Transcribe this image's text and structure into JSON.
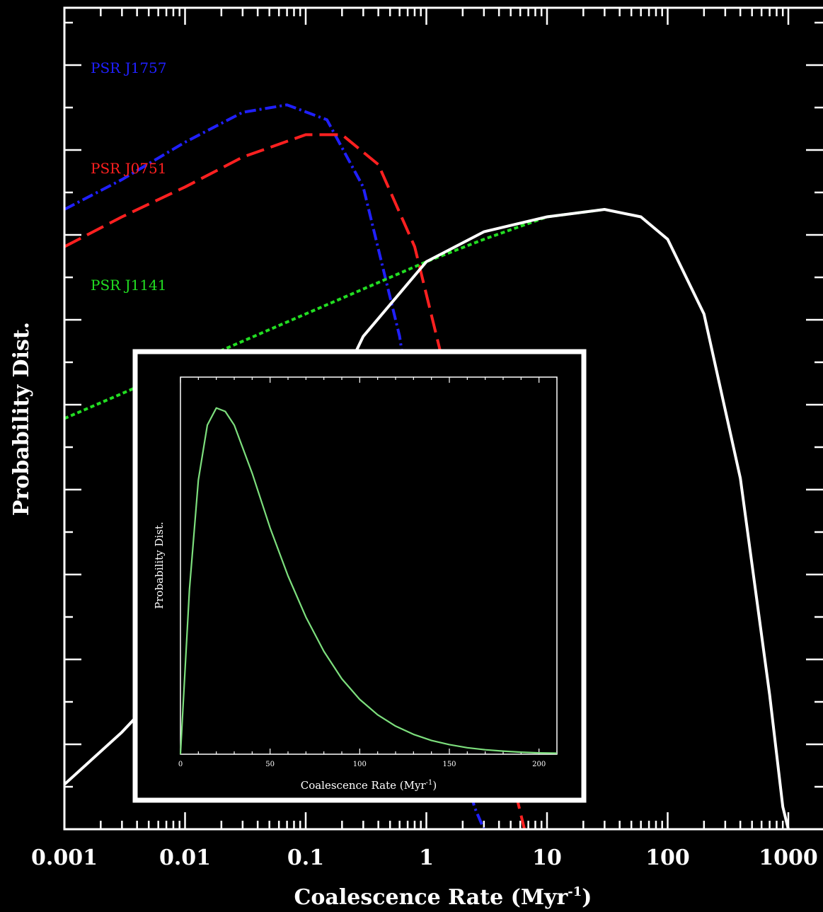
{
  "chart_data": [
    {
      "type": "line",
      "xscale": "log",
      "xlim": [
        0.001,
        1000
      ],
      "xlabel": "Coalescence Rate (Myr",
      "xlabel_sup": "-1",
      "xlabel_suffix": ")",
      "ylabel": "Probability Dist.",
      "xticks": [
        0.001,
        0.01,
        0.1,
        1,
        10,
        100,
        1000
      ],
      "xtick_labels": [
        "0.001",
        "0.01",
        "0.1",
        "1",
        "10",
        "100",
        "1000"
      ],
      "ylim": [
        0,
        1.1
      ],
      "grid": false,
      "series": [
        {
          "name": "PSR J1757",
          "color": "#2020ff",
          "style": "dash-dot",
          "x": [
            0.001,
            0.003,
            0.01,
            0.03,
            0.07,
            0.15,
            0.3,
            0.6,
            1.0,
            1.5,
            2.5,
            3.0
          ],
          "y": [
            0.83,
            0.87,
            0.92,
            0.96,
            0.97,
            0.95,
            0.86,
            0.66,
            0.42,
            0.18,
            0.03,
            0.0
          ]
        },
        {
          "name": "PSR J0751",
          "color": "#ff2020",
          "style": "long-dash",
          "x": [
            0.001,
            0.003,
            0.01,
            0.03,
            0.1,
            0.2,
            0.4,
            0.8,
            1.5,
            2.5,
            4.0,
            6.5
          ],
          "y": [
            0.78,
            0.82,
            0.86,
            0.9,
            0.93,
            0.93,
            0.89,
            0.78,
            0.6,
            0.36,
            0.14,
            0.0
          ]
        },
        {
          "name": "PSR J1141",
          "color": "#22dd22",
          "style": "dotted",
          "x": [
            0.001,
            0.01,
            0.1,
            1,
            3,
            10,
            30
          ],
          "y": [
            0.55,
            0.62,
            0.69,
            0.76,
            0.79,
            0.82,
            0.83
          ]
        },
        {
          "name": "",
          "color": "#ffffff",
          "style": "solid",
          "x": [
            0.001,
            0.003,
            0.01,
            0.03,
            0.1,
            0.3,
            1,
            3,
            10,
            30,
            60,
            100,
            200,
            400,
            700,
            900,
            1000
          ],
          "y": [
            0.06,
            0.13,
            0.22,
            0.33,
            0.5,
            0.66,
            0.76,
            0.8,
            0.82,
            0.83,
            0.82,
            0.79,
            0.69,
            0.47,
            0.18,
            0.03,
            0.0
          ]
        }
      ],
      "series_labels": [
        "PSR J1757",
        "PSR J0751",
        "PSR J1141"
      ]
    },
    {
      "type": "line",
      "xlim": [
        0,
        210
      ],
      "xticks": [
        0,
        50,
        100,
        150,
        200
      ],
      "xtick_labels": [
        "0",
        "50",
        "100",
        "150",
        "200"
      ],
      "xlabel": "Coalescence Rate (Myr",
      "xlabel_sup": "-1",
      "xlabel_suffix": ")",
      "ylabel": "Probability Dist.",
      "ylim": [
        0,
        1.1
      ],
      "series": [
        {
          "name": "",
          "color": "#7ddf7d",
          "x": [
            0,
            5,
            10,
            15,
            20,
            25,
            30,
            40,
            50,
            60,
            70,
            80,
            90,
            100,
            110,
            120,
            130,
            140,
            150,
            160,
            170,
            180,
            190,
            200,
            210
          ],
          "y": [
            0,
            0.48,
            0.8,
            0.96,
            1.01,
            1.0,
            0.96,
            0.82,
            0.66,
            0.52,
            0.4,
            0.3,
            0.22,
            0.16,
            0.115,
            0.082,
            0.058,
            0.04,
            0.028,
            0.019,
            0.013,
            0.009,
            0.006,
            0.004,
            0.003
          ]
        }
      ]
    }
  ]
}
